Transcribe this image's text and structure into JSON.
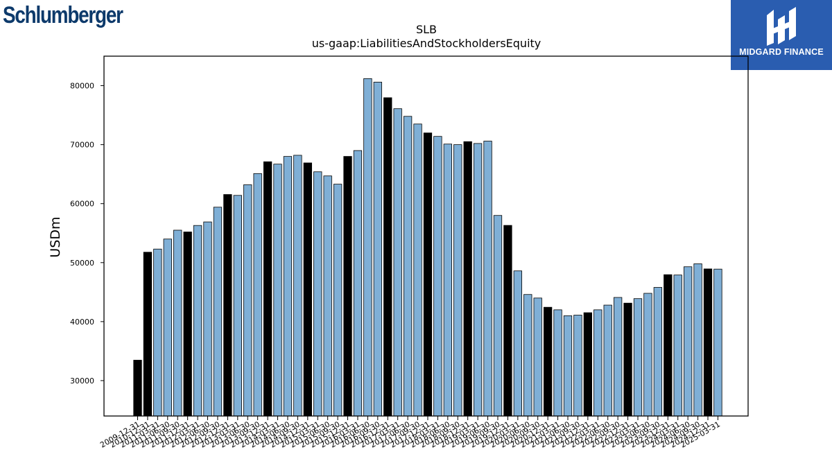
{
  "branding": {
    "left_logo": "Schlumberger",
    "right_logo": "MIDGARD FINANCE"
  },
  "chart_data": {
    "type": "bar",
    "title": "SLB",
    "subtitle": "us-gaap:LiabilitiesAndStockholdersEquity",
    "ylabel": "USDm",
    "xlabel": "",
    "ylim": [
      24000,
      85000
    ],
    "yticks": [
      30000,
      40000,
      50000,
      60000,
      70000,
      80000
    ],
    "grid": false,
    "colors": {
      "annual": "#000000",
      "quarterly": "#7fafd6",
      "edge": "#000000"
    },
    "categories": [
      "2009-12-31",
      "2010-12-31",
      "2011-03-31",
      "2011-06-30",
      "2011-09-30",
      "2011-12-31",
      "2012-03-31",
      "2012-06-30",
      "2012-09-30",
      "2012-12-31",
      "2013-03-31",
      "2013-06-30",
      "2013-09-30",
      "2013-12-31",
      "2014-03-31",
      "2014-06-30",
      "2014-09-30",
      "2014-12-31",
      "2015-03-31",
      "2015-06-30",
      "2015-09-30",
      "2015-12-31",
      "2016-03-31",
      "2016-06-30",
      "2016-09-30",
      "2016-12-31",
      "2017-03-31",
      "2017-06-30",
      "2017-09-30",
      "2017-12-31",
      "2018-03-31",
      "2018-06-30",
      "2018-09-30",
      "2018-12-31",
      "2019-03-31",
      "2019-06-30",
      "2019-09-30",
      "2019-12-31",
      "2020-03-31",
      "2020-06-30",
      "2020-09-30",
      "2020-12-31",
      "2021-03-31",
      "2021-06-30",
      "2021-09-30",
      "2021-12-31",
      "2022-03-31",
      "2022-06-30",
      "2022-09-30",
      "2022-12-31",
      "2023-03-31",
      "2023-06-30",
      "2023-09-30",
      "2023-12-31",
      "2024-03-31",
      "2024-06-30",
      "2024-09-30",
      "2024-12-31",
      "2025-03-31"
    ],
    "values": [
      33465,
      51767,
      52300,
      54000,
      55500,
      55201,
      56300,
      56900,
      59400,
      61547,
      61400,
      63200,
      65100,
      67100,
      66700,
      68000,
      68200,
      66904,
      65400,
      64700,
      63300,
      68005,
      69000,
      81200,
      80600,
      77956,
      76100,
      74800,
      73500,
      71987,
      71400,
      70100,
      70000,
      70507,
      70200,
      70600,
      58000,
      56312,
      48600,
      44600,
      44000,
      42434,
      42000,
      41000,
      41100,
      41511,
      42000,
      42800,
      44100,
      43135,
      43900,
      44800,
      45800,
      47957,
      47900,
      49300,
      49800,
      48935,
      48900
    ],
    "annual": [
      true,
      true,
      false,
      false,
      false,
      true,
      false,
      false,
      false,
      true,
      false,
      false,
      false,
      true,
      false,
      false,
      false,
      true,
      false,
      false,
      false,
      true,
      false,
      false,
      false,
      true,
      false,
      false,
      false,
      true,
      false,
      false,
      false,
      true,
      false,
      false,
      false,
      true,
      false,
      false,
      false,
      true,
      false,
      false,
      false,
      true,
      false,
      false,
      false,
      true,
      false,
      false,
      false,
      true,
      false,
      false,
      false,
      true,
      false
    ]
  }
}
